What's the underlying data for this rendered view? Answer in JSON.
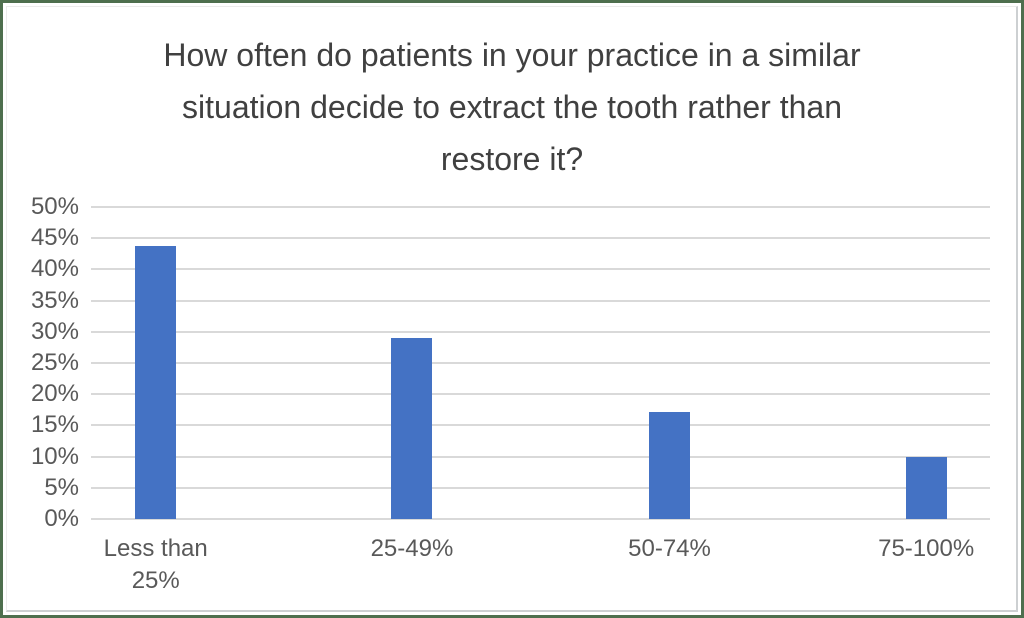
{
  "chart_data": {
    "type": "bar",
    "title": "How often do patients in your practice in a similar situation decide to extract the tooth rather than restore it?",
    "categories": [
      "Less than 25%",
      "25-49%",
      "50-74%",
      "75-100%"
    ],
    "values": [
      43.8,
      29,
      17.2,
      9.9
    ],
    "xlabel": "",
    "ylabel": "",
    "ylim": [
      0,
      50
    ],
    "ytick_step": 5,
    "ytick_labels": [
      "0%",
      "5%",
      "10%",
      "15%",
      "20%",
      "25%",
      "30%",
      "35%",
      "40%",
      "45%",
      "50%"
    ],
    "grid": true,
    "legend_position": "none",
    "colors": {
      "bar": "#4472C4",
      "gridline": "#D9D9D9",
      "title_text": "#404040",
      "axis_text": "#595959",
      "frame_border": "#4E6F4E",
      "background": "#FFFFFF"
    }
  }
}
